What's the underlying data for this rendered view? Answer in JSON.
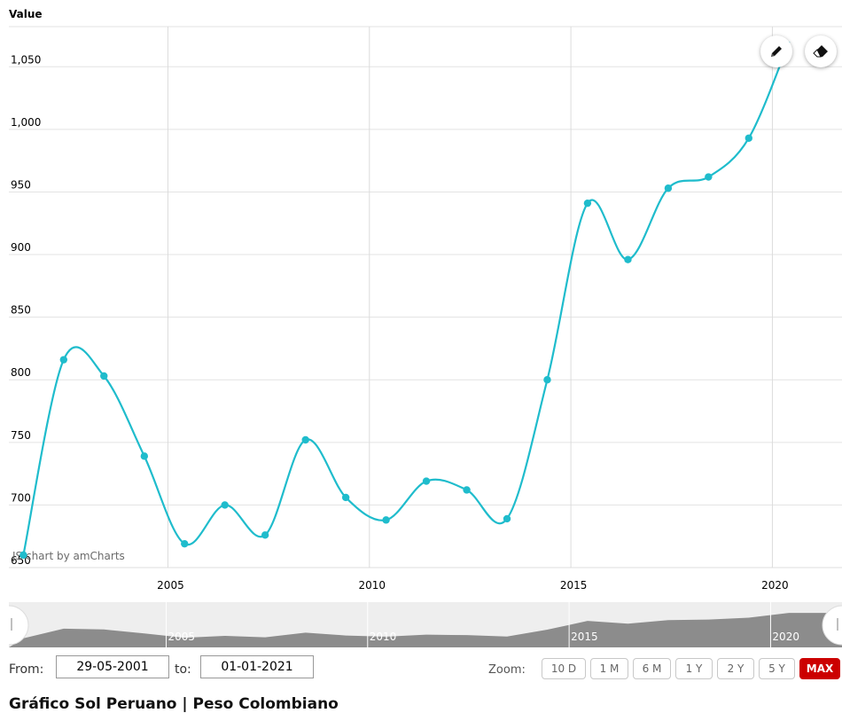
{
  "chart_data": {
    "type": "line",
    "ylabel": "Value",
    "ylim": [
      650,
      1070
    ],
    "yticks": [
      "650",
      "700",
      "750",
      "800",
      "850",
      "900",
      "950",
      "1,000",
      "1,050"
    ],
    "ytick_values": [
      650,
      700,
      750,
      800,
      850,
      900,
      950,
      1000,
      1050
    ],
    "xlim": [
      "2001-05-29",
      "2021-01-01"
    ],
    "xticks": [
      "2005",
      "2010",
      "2015",
      "2020"
    ],
    "grid": true,
    "series": [
      {
        "color": "#1fbccc",
        "points": [
          {
            "x": "2001-06-01",
            "y": 660
          },
          {
            "x": "2002-06-01",
            "y": 816
          },
          {
            "x": "2003-06-01",
            "y": 803
          },
          {
            "x": "2004-06-01",
            "y": 739
          },
          {
            "x": "2005-06-01",
            "y": 669
          },
          {
            "x": "2006-06-01",
            "y": 700
          },
          {
            "x": "2007-06-01",
            "y": 676
          },
          {
            "x": "2008-06-01",
            "y": 752
          },
          {
            "x": "2009-06-01",
            "y": 706
          },
          {
            "x": "2010-06-01",
            "y": 688
          },
          {
            "x": "2011-06-01",
            "y": 719
          },
          {
            "x": "2012-06-01",
            "y": 712
          },
          {
            "x": "2013-06-01",
            "y": 689
          },
          {
            "x": "2014-06-01",
            "y": 800
          },
          {
            "x": "2015-06-01",
            "y": 941
          },
          {
            "x": "2016-06-01",
            "y": 896
          },
          {
            "x": "2017-06-01",
            "y": 953
          },
          {
            "x": "2018-06-01",
            "y": 962
          },
          {
            "x": "2019-06-01",
            "y": 993
          },
          {
            "x": "2020-06-01",
            "y": 1070
          }
        ]
      }
    ]
  },
  "credit": "JS chart by amCharts",
  "scrollbar": {
    "labels": [
      "2005",
      "2010",
      "2015",
      "2020"
    ]
  },
  "tools": {
    "draw_icon": "pencil-icon",
    "erase_icon": "eraser-icon"
  },
  "controls": {
    "from_label": "From:",
    "from_value": "29-05-2001",
    "to_label": "to:",
    "to_value": "01-01-2021",
    "zoom_label": "Zoom:",
    "zoom_buttons": [
      "10 D",
      "1 M",
      "6 M",
      "1 Y",
      "2 Y",
      "5 Y",
      "MAX"
    ],
    "active_zoom": "MAX"
  },
  "page_title": "Gráfico Sol Peruano | Peso Colombiano",
  "colors": {
    "line": "#1fbccc",
    "active_zoom": "#cc0000",
    "scrollbar_fill": "#8c8c8c"
  }
}
